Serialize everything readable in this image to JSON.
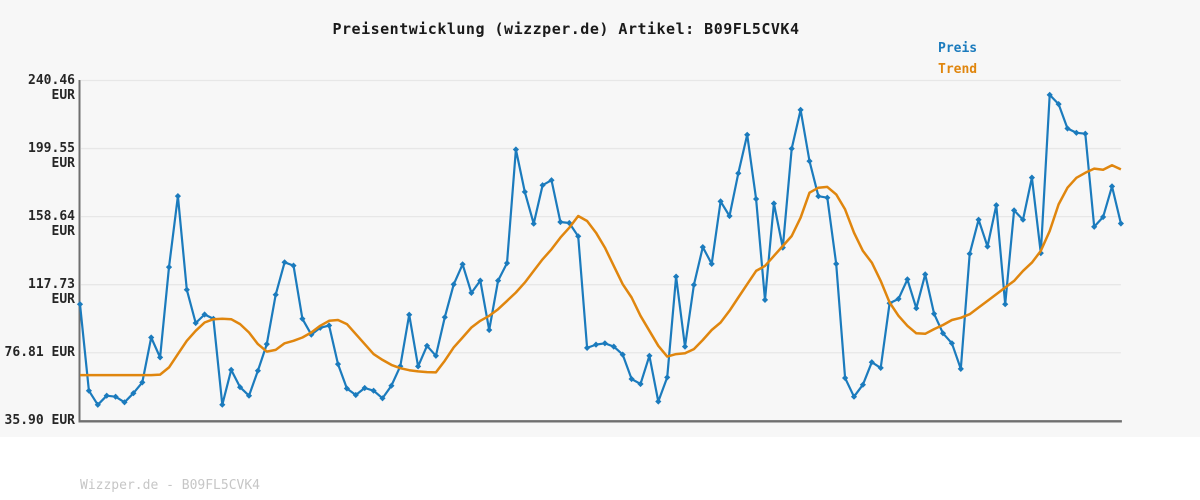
{
  "title": {
    "text": "Preisentwicklung (wizzper.de) Artikel: B09FL5CVK4"
  },
  "footer": {
    "text": "Wizzper.de - B09FL5CVK4"
  },
  "legend": {
    "items": [
      {
        "label": "Preis",
        "color": "#1b7bbd"
      },
      {
        "label": "Trend",
        "color": "#e0860e"
      }
    ]
  },
  "colors": {
    "canvas_background": "#f7f7f7",
    "grid": "#e7e7e7",
    "axis_spine": "#6f6f6f",
    "price_line": "#1b7bbd",
    "trend_line": "#e0860e",
    "tick_text": "#262626",
    "footer_text": "#c6c6c6"
  },
  "chart_data": {
    "type": "line",
    "title": "Preisentwicklung (wizzper.de) Artikel: B09FL5CVK4",
    "unit": "EUR",
    "grid": true,
    "legend_position": "top-right",
    "x_axis": {
      "tick_labels_visible": false,
      "num_points": 118
    },
    "ylim": [
      35.9,
      240.46
    ],
    "y_ticks": [
      {
        "value": 240.46,
        "label": "240.46 EUR"
      },
      {
        "value": 199.55,
        "label": "199.55 EUR"
      },
      {
        "value": 158.64,
        "label": "158.64 EUR"
      },
      {
        "value": 117.73,
        "label": "117.73 EUR"
      },
      {
        "value": 76.81,
        "label": "76.81 EUR"
      },
      {
        "value": 35.9,
        "label": "35.90 EUR"
      }
    ],
    "series": [
      {
        "name": "Preis",
        "color": "#1b7bbd",
        "markers": true,
        "values": [
          106.0,
          54.0,
          45.5,
          51.0,
          50.4,
          47.0,
          52.5,
          59.0,
          86.0,
          74.0,
          128.3,
          171.0,
          114.7,
          94.7,
          99.8,
          97.2,
          45.6,
          66.5,
          56.1,
          51.0,
          66.0,
          82.0,
          111.7,
          131.2,
          129.2,
          97.2,
          87.7,
          91.8,
          93.2,
          70.0,
          55.3,
          51.4,
          55.6,
          54.0,
          49.4,
          57.0,
          68.7,
          99.7,
          68.6,
          81.0,
          75.0,
          98.2,
          117.9,
          130.0,
          112.8,
          120.2,
          90.5,
          120.2,
          130.7,
          199.0,
          173.5,
          154.4,
          177.5,
          180.5,
          155.4,
          154.8,
          146.8,
          79.7,
          81.7,
          82.5,
          80.5,
          75.7,
          61.0,
          58.0,
          75.0,
          47.5,
          62.0,
          122.6,
          80.5,
          117.6,
          140.3,
          130.2,
          167.8,
          159.0,
          184.7,
          207.8,
          169.2,
          108.6,
          166.5,
          140.0,
          199.5,
          222.8,
          192.0,
          170.9,
          170.0,
          130.2,
          61.6,
          50.4,
          57.6,
          71.1,
          67.7,
          106.6,
          109.2,
          120.9,
          103.6,
          123.9,
          100.2,
          88.5,
          82.5,
          67.1,
          136.3,
          156.8,
          140.7,
          165.5,
          106.0,
          162.4,
          156.8,
          182.1,
          136.7,
          231.8,
          226.3,
          211.6,
          209.0,
          208.5,
          152.5,
          158.4,
          176.8,
          154.5
        ]
      },
      {
        "name": "Trend",
        "color": "#e0860e",
        "markers": false,
        "values": [
          63.4,
          63.4,
          63.4,
          63.4,
          63.4,
          63.4,
          63.4,
          63.4,
          63.4,
          63.7,
          68.0,
          76.0,
          84.0,
          90.0,
          95.0,
          97.0,
          97.3,
          97.0,
          94.0,
          89.0,
          82.0,
          77.5,
          78.5,
          82.5,
          84.0,
          86.0,
          89.0,
          93.0,
          96.0,
          96.5,
          94.0,
          88.0,
          82.0,
          76.0,
          72.5,
          69.5,
          67.5,
          66.3,
          65.6,
          65.2,
          65.0,
          72.0,
          80.0,
          86.0,
          92.0,
          96.0,
          99.0,
          103.0,
          108.0,
          113.0,
          119.0,
          126.0,
          133.0,
          139.0,
          146.0,
          152.0,
          159.0,
          156.0,
          149.0,
          140.0,
          129.0,
          118.0,
          110.0,
          99.0,
          90.0,
          81.0,
          74.5,
          76.0,
          76.5,
          79.0,
          84.5,
          90.5,
          95.0,
          102.0,
          110.0,
          118.0,
          126.0,
          129.0,
          135.0,
          141.0,
          147.0,
          158.0,
          173.0,
          176.0,
          176.5,
          172.0,
          163.0,
          149.0,
          138.0,
          131.0,
          120.0,
          107.0,
          99.0,
          93.0,
          88.5,
          88.2,
          91.0,
          93.5,
          96.5,
          97.8,
          100.0,
          104.0,
          108.0,
          112.0,
          116.0,
          120.0,
          126.0,
          131.0,
          138.0,
          150.0,
          166.0,
          176.0,
          182.0,
          185.0,
          187.5,
          186.8,
          189.5,
          187.0
        ]
      }
    ]
  }
}
